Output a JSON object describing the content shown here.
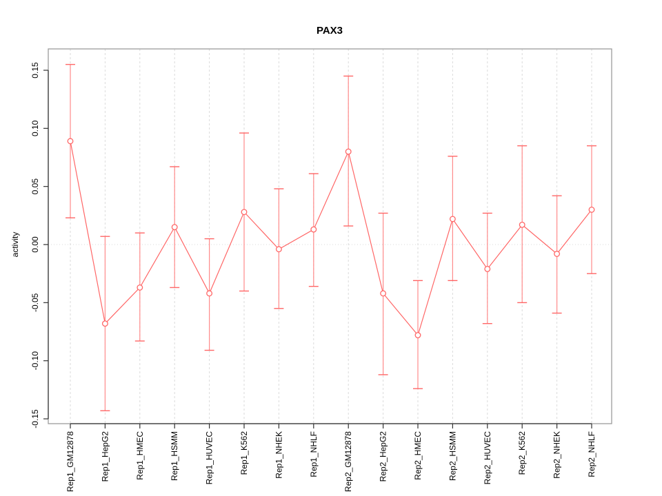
{
  "title": "PAX3",
  "ylabel": "activity",
  "chart_data": {
    "type": "line",
    "title": "PAX3",
    "xlabel": "",
    "ylabel": "activity",
    "ylim": [
      -0.15,
      0.15
    ],
    "yticks": [
      0.15,
      0.1,
      0.05,
      0.0,
      -0.05,
      -0.1,
      -0.15
    ],
    "ytick_labels": [
      "0.15",
      "0.10",
      "0.05",
      "0.00",
      "-0.05",
      "-0.10",
      "-0.15"
    ],
    "categories": [
      "Rep1_GM12878",
      "Rep1_HepG2",
      "Rep1_HMEC",
      "Rep1_HSMM",
      "Rep1_HUVEC",
      "Rep1_K562",
      "Rep1_NHEK",
      "Rep1_NHLF",
      "Rep2_GM12878",
      "Rep2_HepG2",
      "Rep2_HMEC",
      "Rep2_HSMM",
      "Rep2_HUVEC",
      "Rep2_K562",
      "Rep2_NHEK",
      "Rep2_NHLF"
    ],
    "series": [
      {
        "name": "activity",
        "values": [
          0.089,
          -0.068,
          -0.037,
          0.015,
          -0.042,
          0.028,
          -0.004,
          0.013,
          0.08,
          -0.042,
          -0.078,
          0.022,
          -0.021,
          0.017,
          -0.008,
          0.03
        ],
        "error_low": [
          0.023,
          -0.143,
          -0.083,
          -0.037,
          -0.091,
          -0.04,
          -0.055,
          -0.036,
          0.016,
          -0.112,
          -0.124,
          -0.031,
          -0.068,
          -0.05,
          -0.059,
          -0.025
        ],
        "error_high": [
          0.155,
          0.007,
          0.01,
          0.067,
          0.005,
          0.096,
          0.048,
          0.061,
          0.145,
          0.027,
          -0.031,
          0.076,
          0.027,
          0.085,
          0.042,
          0.085
        ]
      }
    ],
    "marker": "open-circle",
    "legend": "none",
    "grid": {
      "vertical": "dashed-per-category",
      "zero_line": "dotted"
    },
    "colors": {
      "accent": "#ff6666",
      "accent_light": "#ff8a8a",
      "grid": "#dadada",
      "box": "#9b9b9b",
      "axis": "#303030",
      "text": "#000000"
    }
  }
}
